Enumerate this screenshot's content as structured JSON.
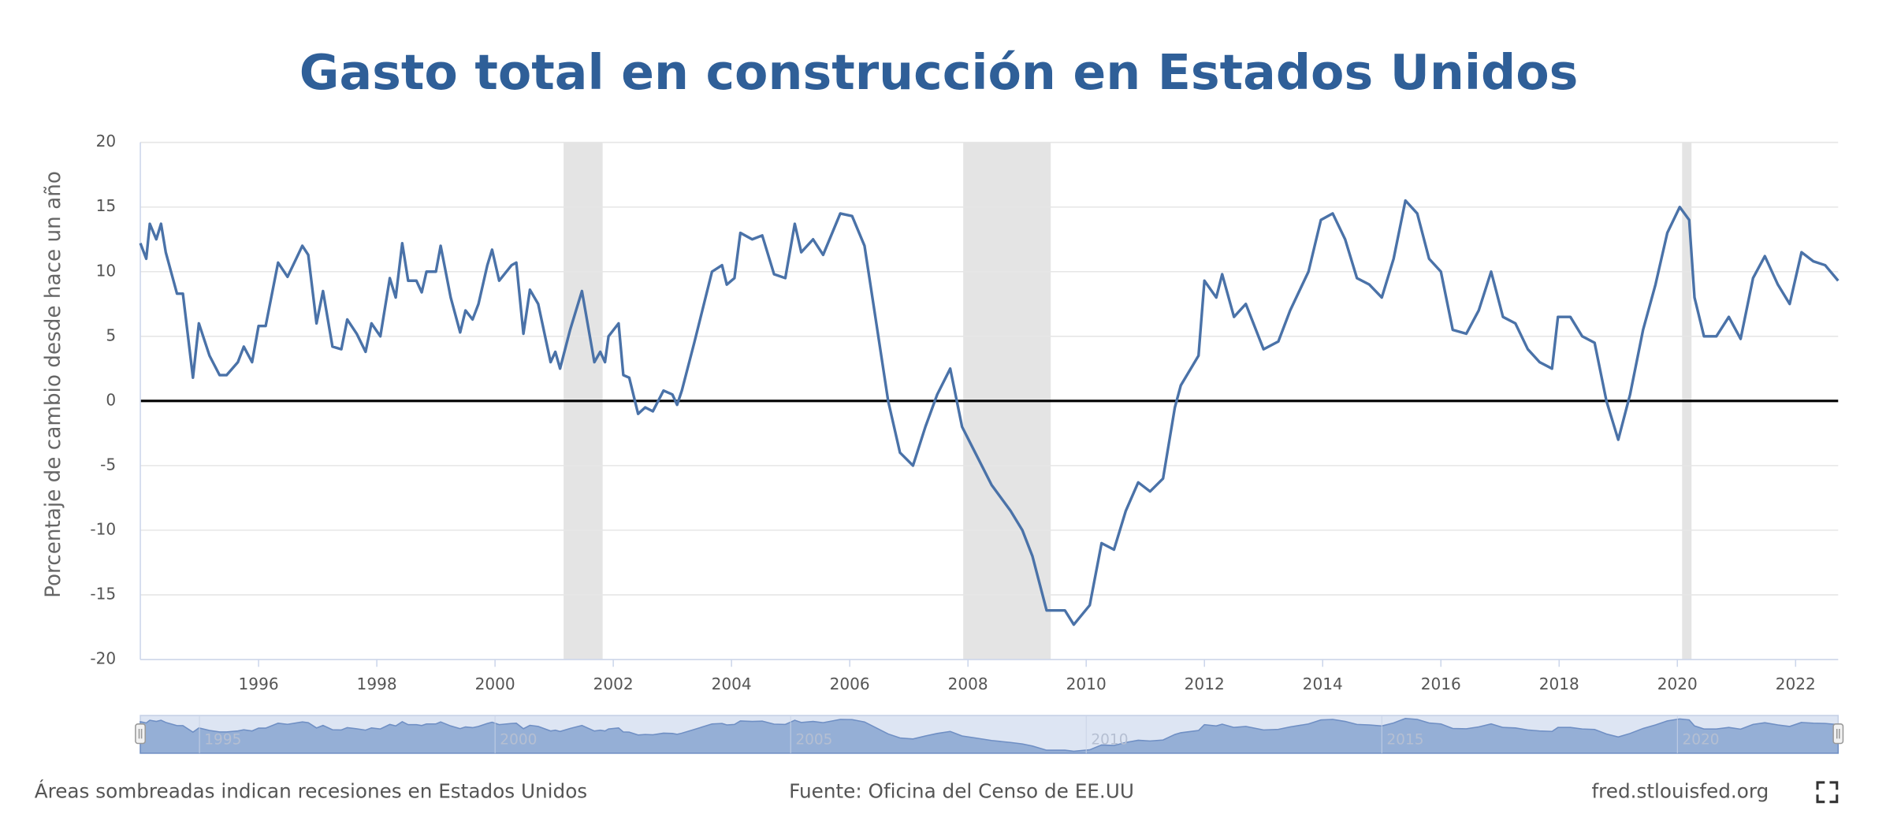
{
  "chart_data": {
    "type": "line",
    "title": "Gasto total en construcción en Estados Unidos",
    "y_label": "Porcentaje de cambio desde hace un año",
    "x": [
      1994.0,
      1994.1,
      1994.16,
      1994.27,
      1994.35,
      1994.43,
      1994.62,
      1994.72,
      1994.89,
      1994.99,
      1995.17,
      1995.34,
      1995.46,
      1995.65,
      1995.75,
      1995.89,
      1996.0,
      1996.12,
      1996.33,
      1996.49,
      1996.74,
      1996.84,
      1996.98,
      1997.09,
      1997.25,
      1997.4,
      1997.5,
      1997.66,
      1997.81,
      1997.91,
      1998.06,
      1998.22,
      1998.32,
      1998.43,
      1998.53,
      1998.67,
      1998.76,
      1998.84,
      1999.0,
      1999.08,
      1999.25,
      1999.41,
      1999.5,
      1999.62,
      1999.72,
      1999.87,
      1999.95,
      2000.07,
      2000.28,
      2000.36,
      2000.48,
      2000.59,
      2000.73,
      2000.94,
      2001.02,
      2001.1,
      2001.27,
      2001.47,
      2001.68,
      2001.78,
      2001.86,
      2001.92,
      2002.09,
      2002.17,
      2002.27,
      2002.42,
      2002.54,
      2002.67,
      2002.85,
      2003.0,
      2003.08,
      2003.16,
      2003.37,
      2003.67,
      2003.84,
      2003.92,
      2004.05,
      2004.15,
      2004.35,
      2004.52,
      2004.72,
      2004.91,
      2005.07,
      2005.18,
      2005.38,
      2005.55,
      2005.84,
      2006.04,
      2006.25,
      2006.45,
      2006.65,
      2006.85,
      2007.07,
      2007.28,
      2007.48,
      2007.7,
      2007.9,
      2008.1,
      2008.4,
      2008.72,
      2008.92,
      2009.09,
      2009.33,
      2009.64,
      2009.79,
      2010.06,
      2010.26,
      2010.47,
      2010.67,
      2010.88,
      2011.08,
      2011.3,
      2011.5,
      2011.6,
      2011.9,
      2012.0,
      2012.2,
      2012.3,
      2012.5,
      2012.7,
      2013.0,
      2013.25,
      2013.45,
      2013.76,
      2013.97,
      2014.17,
      2014.38,
      2014.58,
      2014.79,
      2015.0,
      2015.2,
      2015.4,
      2015.6,
      2015.8,
      2016.0,
      2016.2,
      2016.43,
      2016.64,
      2016.85,
      2017.05,
      2017.26,
      2017.47,
      2017.67,
      2017.88,
      2017.98,
      2018.19,
      2018.39,
      2018.6,
      2018.8,
      2019.0,
      2019.2,
      2019.42,
      2019.63,
      2019.83,
      2020.04,
      2020.2,
      2020.29,
      2020.45,
      2020.66,
      2020.87,
      2021.07,
      2021.28,
      2021.48,
      2021.7,
      2021.9,
      2022.1,
      2022.3,
      2022.5,
      2022.72
    ],
    "series": [
      {
        "color": "#4a72a8",
        "values": [
          12.2,
          11,
          13.7,
          12.5,
          13.7,
          11.5,
          8.3,
          8.3,
          1.8,
          6,
          3.5,
          2,
          2,
          3,
          4.2,
          3,
          5.8,
          5.8,
          10.7,
          9.6,
          12,
          11.3,
          6,
          8.5,
          4.2,
          4,
          6.3,
          5.2,
          3.8,
          6,
          5,
          9.5,
          8,
          12.2,
          9.3,
          9.3,
          8.4,
          10,
          10,
          12,
          8,
          5.3,
          7,
          6.3,
          7.5,
          10.5,
          11.7,
          9.3,
          10.5,
          10.7,
          5.2,
          8.6,
          7.5,
          3,
          3.8,
          2.5,
          5.5,
          8.5,
          3,
          3.8,
          3,
          5,
          6,
          2,
          1.8,
          -1,
          -0.5,
          -0.8,
          0.8,
          0.5,
          -0.3,
          0.8,
          4.5,
          10,
          10.5,
          9,
          9.5,
          13,
          12.5,
          12.8,
          9.8,
          9.5,
          13.7,
          11.5,
          12.5,
          11.3,
          14.5,
          14.3,
          12,
          6,
          0,
          -4,
          -5,
          -2,
          0.5,
          2.5,
          -2,
          -3.8,
          -6.5,
          -8.5,
          -10,
          -12,
          -16.2,
          -16.2,
          -17.3,
          -15.8,
          -11,
          -11.5,
          -8.5,
          -6.3,
          -7,
          -6,
          -0.5,
          1.2,
          3.5,
          9.3,
          8,
          9.8,
          6.5,
          7.5,
          4,
          4.6,
          7,
          10,
          14,
          14.5,
          12.5,
          9.5,
          9,
          8,
          11,
          15.5,
          14.5,
          11,
          10,
          5.5,
          5.2,
          7,
          10,
          6.5,
          6,
          4,
          3,
          2.5,
          6.5,
          6.5,
          5,
          4.5,
          0,
          -3,
          0.5,
          5.5,
          9,
          13,
          15,
          14,
          8,
          5,
          5,
          6.5,
          4.8,
          9.5,
          11.2,
          9,
          7.5,
          11.5,
          10.8,
          10.5,
          9.3
        ]
      }
    ],
    "recessions": [
      [
        2001.16,
        2001.82
      ],
      [
        2007.92,
        2009.4
      ],
      [
        2020.08,
        2020.24
      ]
    ],
    "recession_color": "#e4e4e4",
    "xlim": [
      1994.0,
      2022.72
    ],
    "xticks": [
      1996,
      1998,
      2000,
      2002,
      2004,
      2006,
      2008,
      2010,
      2012,
      2014,
      2016,
      2018,
      2020,
      2022
    ],
    "ylim": [
      -20,
      20
    ],
    "yticks": [
      -20,
      -15,
      -10,
      -5,
      0,
      5,
      10,
      15,
      20
    ],
    "grid": true,
    "navigator_xticks": [
      1995,
      2000,
      2005,
      2010,
      2015,
      2020
    ],
    "note": "Áreas sombreadas indican recesiones en Estados Unidos",
    "source": "Fuente: Oficina del Censo de EE.UU",
    "site": "fred.stlouisfed.org"
  }
}
